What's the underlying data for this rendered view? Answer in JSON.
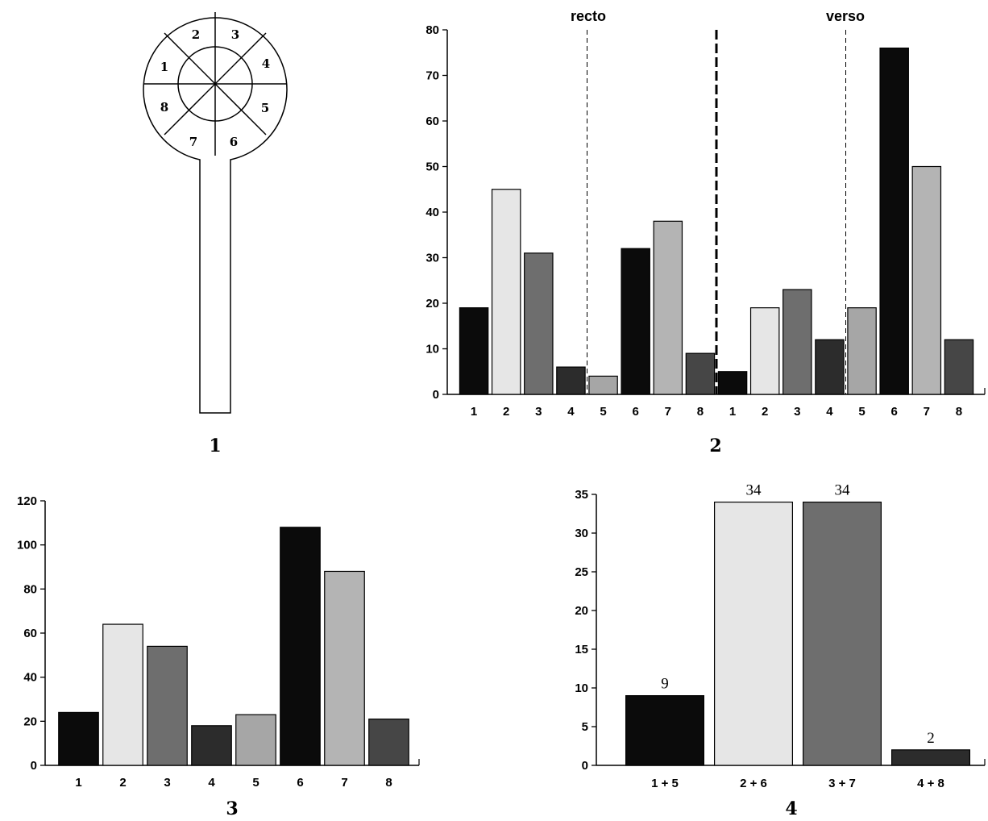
{
  "panels": [
    "1",
    "2",
    "3",
    "4"
  ],
  "diagram": {
    "segments": [
      "1",
      "2",
      "3",
      "4",
      "5",
      "6",
      "7",
      "8"
    ]
  },
  "palette": {
    "1": "#0b0b0b",
    "2": "#e6e6e6",
    "3": "#6e6e6e",
    "4": "#2c2c2c",
    "5": "#a6a6a6",
    "6": "#0b0b0b",
    "7": "#b4b4b4",
    "8": "#464646"
  },
  "chart_data": [
    {
      "panel": "2",
      "type": "bar",
      "categories": [
        "1",
        "2",
        "3",
        "4",
        "5",
        "6",
        "7",
        "8",
        "1",
        "2",
        "3",
        "4",
        "5",
        "6",
        "7",
        "8"
      ],
      "series": [
        {
          "values": [
            19,
            45,
            31,
            6,
            4,
            32,
            38,
            9,
            5,
            19,
            23,
            12,
            19,
            76,
            50,
            12
          ]
        }
      ],
      "groups": [
        "recto",
        "verso"
      ],
      "ylim": [
        0,
        80
      ],
      "yticks": [
        "0",
        "10",
        "20",
        "30",
        "40",
        "50",
        "60",
        "70",
        "80"
      ],
      "grid": false
    },
    {
      "panel": "3",
      "type": "bar",
      "categories": [
        "1",
        "2",
        "3",
        "4",
        "5",
        "6",
        "7",
        "8"
      ],
      "values": [
        24,
        64,
        54,
        18,
        23,
        108,
        88,
        21
      ],
      "ylim": [
        0,
        120
      ],
      "yticks": [
        "0",
        "20",
        "40",
        "60",
        "80",
        "100",
        "120"
      ],
      "grid": false
    },
    {
      "panel": "4",
      "type": "bar",
      "categories": [
        "1 + 5",
        "2 + 6",
        "3 + 7",
        "4 + 8"
      ],
      "values": [
        9,
        34,
        34,
        2
      ],
      "data_labels": [
        "9",
        "34",
        "34",
        "2"
      ],
      "ylim": [
        0,
        35
      ],
      "yticks": [
        "0",
        "5",
        "10",
        "15",
        "20",
        "25",
        "30",
        "35"
      ],
      "grid": false
    }
  ]
}
